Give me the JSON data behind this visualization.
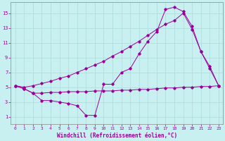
{
  "xlabel": "Windchill (Refroidissement éolien,°C)",
  "bg_color": "#c8f0f0",
  "grid_color": "#b0dede",
  "line_color": "#990099",
  "xlim": [
    -0.5,
    23.5
  ],
  "ylim": [
    0,
    16.5
  ],
  "xticks": [
    0,
    1,
    2,
    3,
    4,
    5,
    6,
    7,
    8,
    9,
    10,
    11,
    12,
    13,
    14,
    15,
    16,
    17,
    18,
    19,
    20,
    21,
    22,
    23
  ],
  "yticks": [
    1,
    3,
    5,
    7,
    9,
    11,
    13,
    15
  ],
  "line1_x": [
    0,
    1,
    2,
    3,
    4,
    5,
    6,
    7,
    8,
    9,
    10,
    11,
    12,
    13,
    14,
    15,
    16,
    17,
    18,
    19,
    20,
    21,
    22,
    23
  ],
  "line1_y": [
    5.2,
    4.8,
    4.2,
    4.2,
    4.3,
    4.3,
    4.4,
    4.4,
    4.4,
    4.5,
    4.5,
    4.5,
    4.6,
    4.6,
    4.7,
    4.7,
    4.8,
    4.9,
    4.9,
    5.0,
    5.0,
    5.1,
    5.1,
    5.2
  ],
  "line2_x": [
    0,
    1,
    2,
    3,
    4,
    5,
    6,
    7,
    8,
    9,
    10,
    11,
    12,
    13,
    14,
    15,
    16,
    17,
    18,
    19,
    20,
    21,
    22,
    23
  ],
  "line2_y": [
    5.2,
    4.8,
    4.2,
    3.2,
    3.2,
    3.0,
    2.8,
    2.5,
    1.2,
    1.2,
    5.4,
    5.4,
    7.0,
    7.5,
    9.5,
    11.2,
    12.5,
    15.5,
    15.8,
    15.2,
    13.2,
    9.8,
    7.5,
    5.2
  ],
  "line3_x": [
    0,
    1,
    2,
    3,
    4,
    5,
    6,
    7,
    8,
    9,
    10,
    11,
    12,
    13,
    14,
    15,
    16,
    17,
    18,
    19,
    20,
    21,
    22,
    23
  ],
  "line3_y": [
    5.2,
    5.0,
    5.2,
    5.5,
    5.8,
    6.2,
    6.5,
    7.0,
    7.5,
    8.0,
    8.5,
    9.2,
    9.8,
    10.5,
    11.2,
    12.0,
    12.8,
    13.5,
    14.0,
    15.0,
    12.8,
    9.8,
    7.8,
    5.2
  ]
}
